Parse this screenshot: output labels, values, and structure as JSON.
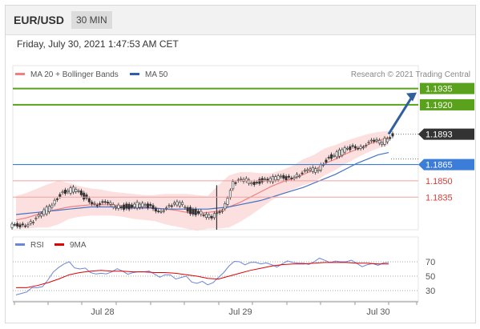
{
  "header": {
    "pair": "EUR/USD",
    "timeframe": "30 MIN"
  },
  "datetime": "Friday, July 30, 2021 1:47:53 AM CET",
  "legend": {
    "ma20_label": "MA 20 + Bollinger Bands",
    "ma50_label": "MA 50",
    "credit": "Research © 2021 Trading Central",
    "rsi_label": "RSI",
    "ma9_label": "9MA"
  },
  "colors": {
    "ma20": "#f08080",
    "bands": "#fbd5d5",
    "ma50": "#4472c4",
    "resistance": "#5aa11c",
    "pivot": "#3b7dd8",
    "support": "#f0a0a0",
    "support_text": "#e53935",
    "current": "#333333",
    "rsi": "#6b85d8",
    "rsi_ma": "#e00000",
    "candle_up": "#333333",
    "candle_down": "#333333"
  },
  "chart_data": [
    {
      "type": "line",
      "title": "EUR/USD",
      "ylim": [
        1.1805,
        1.1945
      ],
      "x_labels": [
        "Jul 28",
        "Jul 29",
        "Jul 30"
      ],
      "series": [
        {
          "name": "MA 20 + Bollinger Bands",
          "values": [
            1.1814,
            1.1816,
            1.1819,
            1.1822,
            1.1824,
            1.1826,
            1.1827,
            1.1828,
            1.1828,
            1.1828,
            1.1827,
            1.1826,
            1.1826,
            1.1825,
            1.1824,
            1.1823,
            1.1821,
            1.182,
            1.1821,
            1.1822,
            1.1826,
            1.183,
            1.1835,
            1.184,
            1.1845,
            1.1849,
            1.1852,
            1.1856,
            1.186,
            1.1866,
            1.187,
            1.1875,
            1.1879,
            1.1883,
            1.1887,
            1.189
          ]
        },
        {
          "name": "MA 50",
          "values": [
            1.1819,
            1.182,
            1.1821,
            1.1822,
            1.1823,
            1.1824,
            1.1825,
            1.1826,
            1.1826,
            1.1826,
            1.1826,
            1.1825,
            1.1825,
            1.1825,
            1.1824,
            1.1824,
            1.1824,
            1.1824,
            1.1824,
            1.1825,
            1.1826,
            1.1828,
            1.183,
            1.1832,
            1.1835,
            1.1838,
            1.1841,
            1.1844,
            1.1848,
            1.1852,
            1.1856,
            1.1861,
            1.1866,
            1.187,
            1.1874,
            1.1876
          ]
        },
        {
          "name": "Price",
          "values": [
            1.181,
            1.1812,
            1.1818,
            1.183,
            1.184,
            1.1842,
            1.1835,
            1.183,
            1.1828,
            1.1827,
            1.1826,
            1.1828,
            1.1826,
            1.1824,
            1.1825,
            1.183,
            1.1822,
            1.182,
            1.1815,
            1.1825,
            1.1848,
            1.185,
            1.1849,
            1.1851,
            1.1852,
            1.1853,
            1.1856,
            1.1858,
            1.1862,
            1.1872,
            1.1876,
            1.188,
            1.1883,
            1.1885,
            1.1886,
            1.1893
          ]
        }
      ],
      "bollinger_upper": [
        1.1836,
        1.1839,
        1.1843,
        1.1847,
        1.185,
        1.1848,
        1.1845,
        1.1843,
        1.1842,
        1.184,
        1.1839,
        1.1838,
        1.1837,
        1.1837,
        1.1838,
        1.1838,
        1.1838,
        1.1837,
        1.1836,
        1.1846,
        1.1855,
        1.1858,
        1.1858,
        1.1857,
        1.1857,
        1.186,
        1.1864,
        1.187,
        1.1874,
        1.188,
        1.1883,
        1.1887,
        1.189,
        1.1893,
        1.1895,
        1.1896
      ],
      "bollinger_lower": [
        1.1806,
        1.1806,
        1.1807,
        1.1807,
        1.181,
        1.1815,
        1.1817,
        1.1818,
        1.1818,
        1.1818,
        1.1817,
        1.1815,
        1.1814,
        1.1813,
        1.181,
        1.1808,
        1.1806,
        1.1804,
        1.1806,
        1.1806,
        1.1807,
        1.1812,
        1.1818,
        1.1825,
        1.1832,
        1.1838,
        1.1842,
        1.1846,
        1.1849,
        1.1855,
        1.186,
        1.1866,
        1.1871,
        1.1876,
        1.188,
        1.1883
      ],
      "levels": [
        {
          "role": "resistance",
          "value": "1.1935"
        },
        {
          "role": "resistance",
          "value": "1.1920"
        },
        {
          "role": "current",
          "value": "1.1893"
        },
        {
          "role": "pivot",
          "value": "1.1865"
        },
        {
          "role": "support",
          "value": "1.1850"
        },
        {
          "role": "support",
          "value": "1.1835"
        }
      ]
    },
    {
      "type": "line",
      "title": "RSI",
      "ylim": [
        20,
        80
      ],
      "y_ticks": [
        "70",
        "50",
        "30"
      ],
      "series": [
        {
          "name": "RSI",
          "values": [
            24,
            28,
            34,
            45,
            62,
            70,
            60,
            55,
            54,
            56,
            57,
            55,
            56,
            53,
            52,
            46,
            50,
            40,
            38,
            48,
            64,
            70,
            69,
            67,
            66,
            67,
            69,
            68,
            70,
            72,
            71,
            70,
            68,
            66,
            65,
            69
          ]
        },
        {
          "name": "9MA",
          "values": [
            34,
            34,
            37,
            41,
            46,
            52,
            55,
            57,
            58,
            57,
            57,
            56,
            56,
            55,
            55,
            54,
            52,
            50,
            47,
            46,
            50,
            54,
            58,
            61,
            64,
            66,
            67,
            67,
            68,
            69,
            69,
            69,
            68,
            68,
            67,
            67
          ]
        }
      ]
    }
  ]
}
